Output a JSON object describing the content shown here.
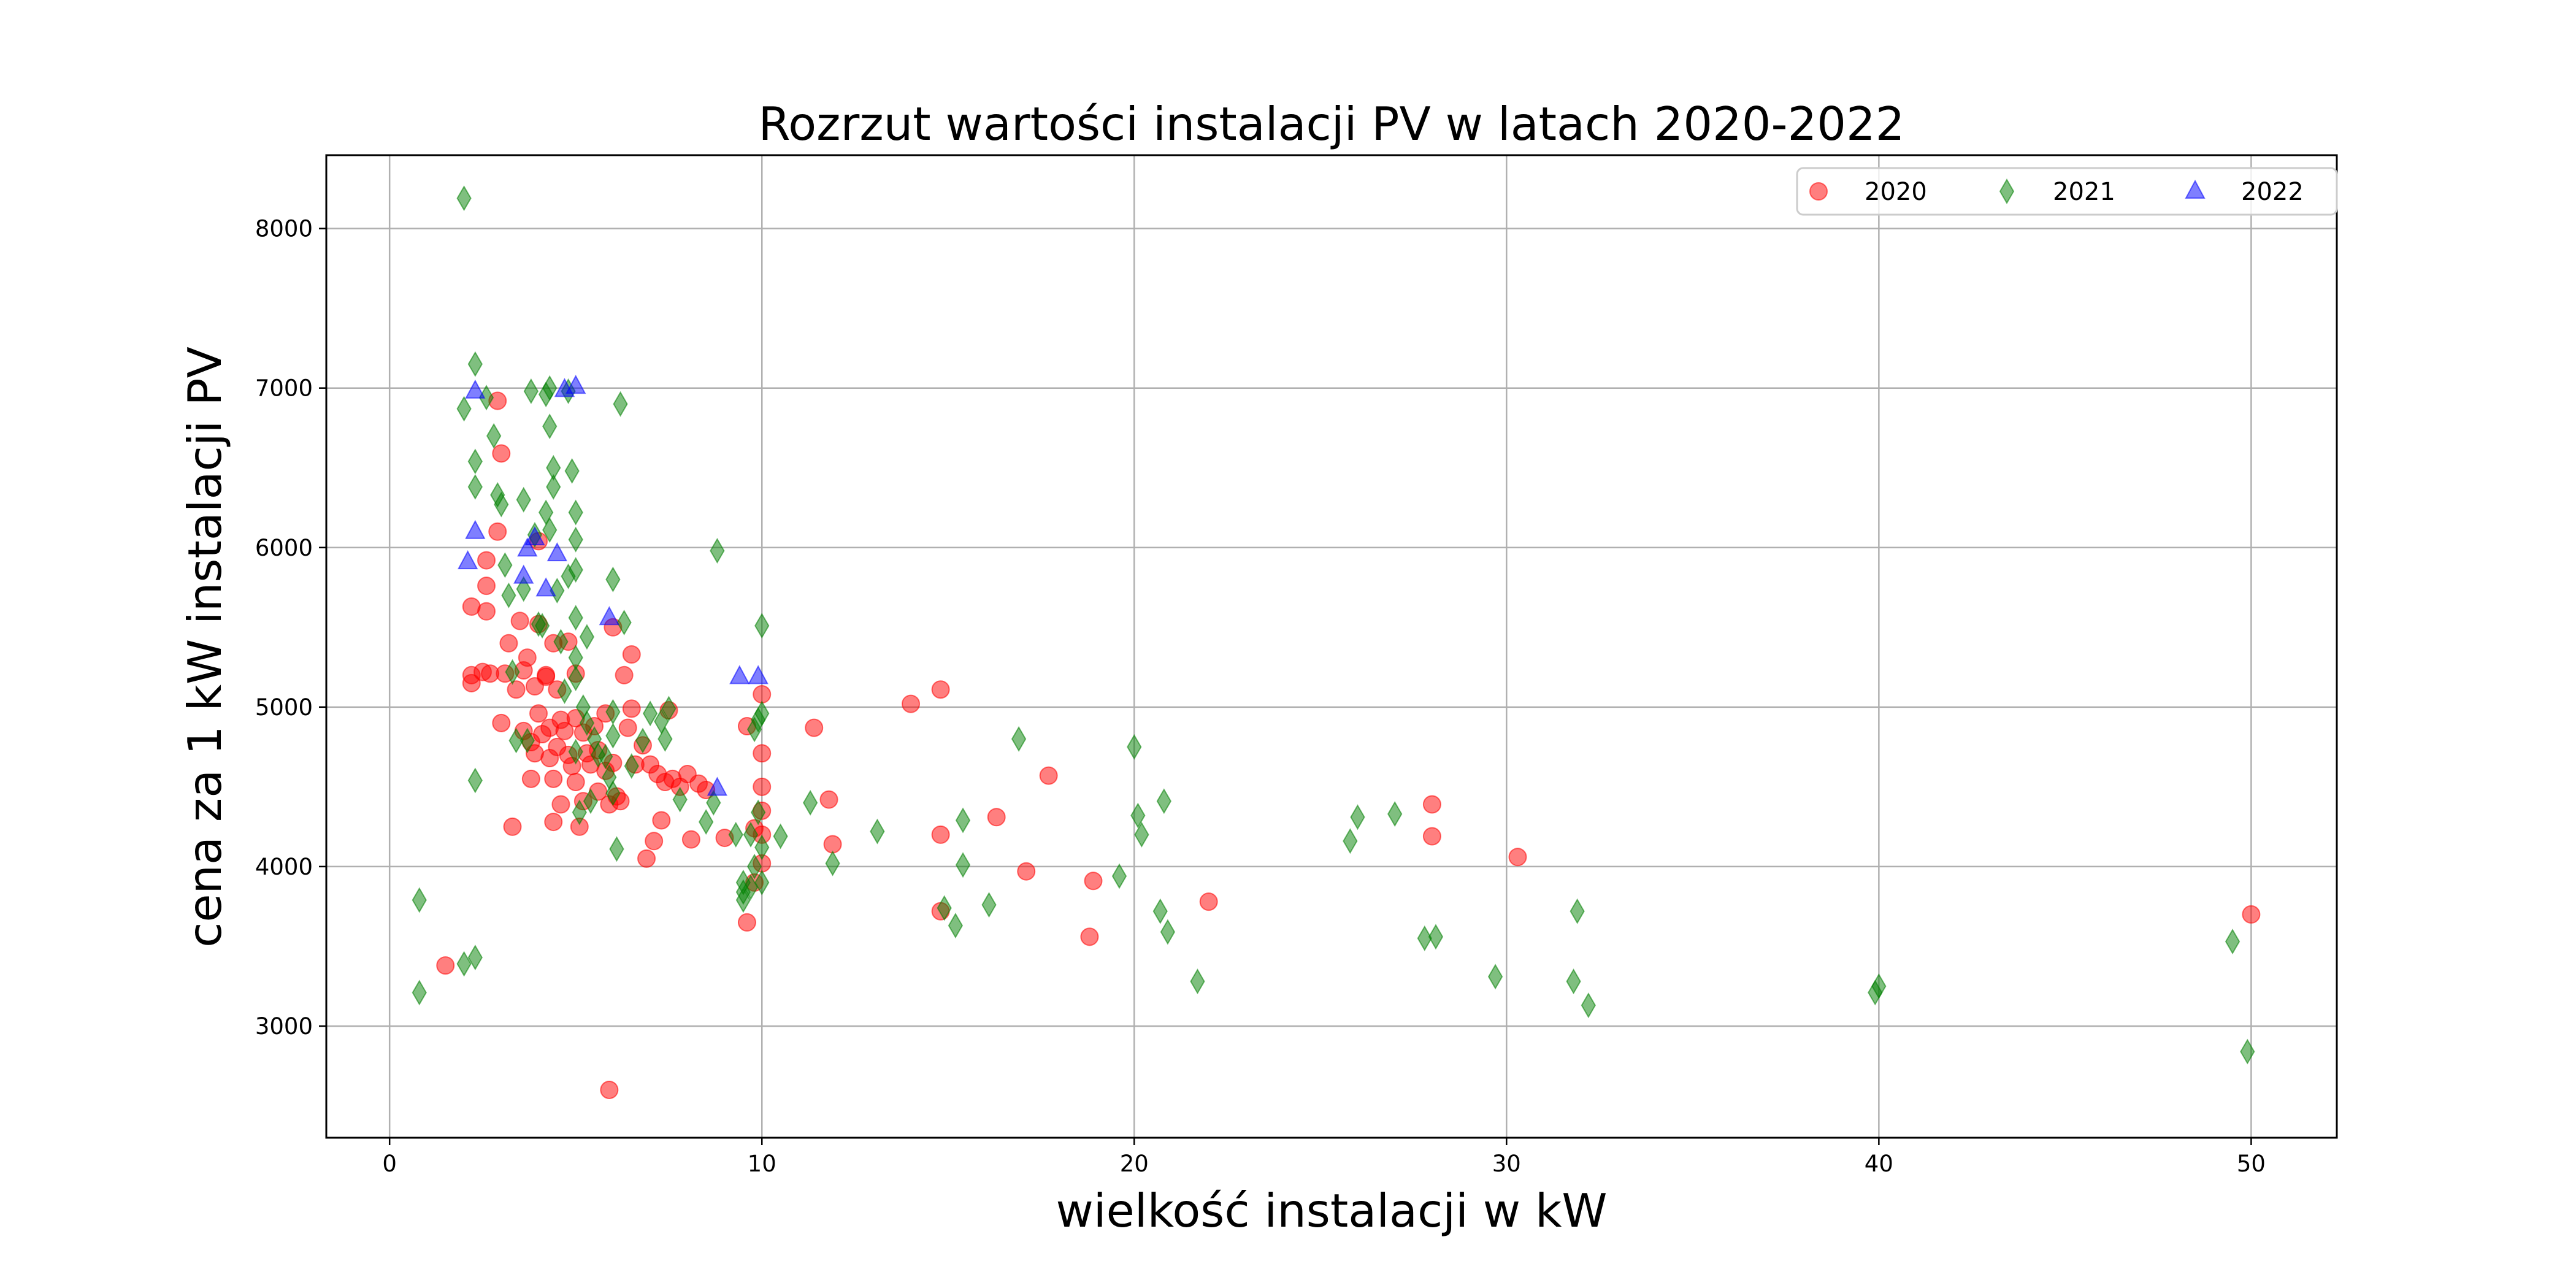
{
  "chart_data": {
    "type": "scatter",
    "title": "Rozrzut wartości instalacji PV w latach 2020-2022",
    "xlabel": "wielkość instalacji w kW",
    "ylabel": "cena za 1 kW instalacji PV",
    "xlim": [
      -1.7,
      52.3
    ],
    "ylim": [
      2300,
      8460
    ],
    "xticks": [
      0,
      10,
      20,
      30,
      40,
      50
    ],
    "yticks": [
      3000,
      4000,
      5000,
      6000,
      7000,
      8000
    ],
    "grid": true,
    "legend_position": "top-right",
    "series": [
      {
        "name": "2020",
        "marker": "circle",
        "color": "#ff0000",
        "points": [
          [
            1.5,
            3380
          ],
          [
            2.2,
            5630
          ],
          [
            2.2,
            5150
          ],
          [
            2.2,
            5200
          ],
          [
            2.5,
            5220
          ],
          [
            2.6,
            5920
          ],
          [
            2.6,
            5600
          ],
          [
            2.6,
            5760
          ],
          [
            2.7,
            5210
          ],
          [
            2.9,
            6920
          ],
          [
            2.9,
            6100
          ],
          [
            3.0,
            6590
          ],
          [
            3.0,
            4900
          ],
          [
            3.1,
            5210
          ],
          [
            3.2,
            5400
          ],
          [
            3.3,
            4250
          ],
          [
            3.4,
            5110
          ],
          [
            3.5,
            5540
          ],
          [
            3.6,
            5230
          ],
          [
            3.6,
            4850
          ],
          [
            3.7,
            5310
          ],
          [
            3.8,
            4550
          ],
          [
            3.8,
            4780
          ],
          [
            3.9,
            5130
          ],
          [
            3.9,
            4710
          ],
          [
            4.0,
            6040
          ],
          [
            4.0,
            5520
          ],
          [
            4.0,
            4960
          ],
          [
            4.1,
            4830
          ],
          [
            4.2,
            5200
          ],
          [
            4.2,
            5190
          ],
          [
            4.3,
            4870
          ],
          [
            4.3,
            4680
          ],
          [
            4.4,
            5400
          ],
          [
            4.4,
            4550
          ],
          [
            4.4,
            4280
          ],
          [
            4.5,
            5110
          ],
          [
            4.5,
            4750
          ],
          [
            4.6,
            4920
          ],
          [
            4.6,
            4390
          ],
          [
            4.7,
            4850
          ],
          [
            4.8,
            5410
          ],
          [
            4.8,
            4700
          ],
          [
            4.9,
            4630
          ],
          [
            5.0,
            5210
          ],
          [
            5.0,
            4930
          ],
          [
            5.0,
            4530
          ],
          [
            5.1,
            4250
          ],
          [
            5.2,
            4840
          ],
          [
            5.2,
            4410
          ],
          [
            5.3,
            4710
          ],
          [
            5.4,
            4640
          ],
          [
            5.5,
            4880
          ],
          [
            5.6,
            4730
          ],
          [
            5.6,
            4470
          ],
          [
            5.8,
            4960
          ],
          [
            5.8,
            4600
          ],
          [
            5.9,
            4390
          ],
          [
            5.9,
            2600
          ],
          [
            6.0,
            5500
          ],
          [
            6.0,
            4650
          ],
          [
            6.1,
            4440
          ],
          [
            6.2,
            4410
          ],
          [
            6.3,
            5200
          ],
          [
            6.4,
            4870
          ],
          [
            6.5,
            5330
          ],
          [
            6.5,
            4990
          ],
          [
            6.6,
            4640
          ],
          [
            6.8,
            4760
          ],
          [
            6.9,
            4050
          ],
          [
            7.0,
            4640
          ],
          [
            7.1,
            4160
          ],
          [
            7.2,
            4580
          ],
          [
            7.3,
            4290
          ],
          [
            7.4,
            4530
          ],
          [
            7.5,
            4980
          ],
          [
            7.6,
            4550
          ],
          [
            7.8,
            4500
          ],
          [
            8.0,
            4580
          ],
          [
            8.1,
            4170
          ],
          [
            8.3,
            4520
          ],
          [
            8.5,
            4480
          ],
          [
            9.0,
            4180
          ],
          [
            9.6,
            4880
          ],
          [
            9.6,
            3650
          ],
          [
            9.8,
            4240
          ],
          [
            9.8,
            3900
          ],
          [
            10.0,
            5080
          ],
          [
            10.0,
            4710
          ],
          [
            10.0,
            4500
          ],
          [
            10.0,
            4350
          ],
          [
            10.0,
            4200
          ],
          [
            10.0,
            4020
          ],
          [
            11.4,
            4870
          ],
          [
            11.8,
            4420
          ],
          [
            11.9,
            4140
          ],
          [
            14.0,
            5020
          ],
          [
            14.8,
            5110
          ],
          [
            14.8,
            4200
          ],
          [
            14.8,
            3720
          ],
          [
            16.3,
            4310
          ],
          [
            17.1,
            3970
          ],
          [
            17.7,
            4570
          ],
          [
            18.8,
            3560
          ],
          [
            18.9,
            3910
          ],
          [
            22.0,
            3780
          ],
          [
            28.0,
            4390
          ],
          [
            28.0,
            4190
          ],
          [
            30.3,
            4060
          ],
          [
            50.0,
            3700
          ]
        ]
      },
      {
        "name": "2021",
        "marker": "thin_diamond",
        "color": "#008000",
        "points": [
          [
            0.8,
            3790
          ],
          [
            0.8,
            3210
          ],
          [
            2.0,
            8190
          ],
          [
            2.0,
            6870
          ],
          [
            2.0,
            3390
          ],
          [
            2.3,
            7150
          ],
          [
            2.3,
            6540
          ],
          [
            2.3,
            6380
          ],
          [
            2.3,
            3430
          ],
          [
            2.3,
            4540
          ],
          [
            2.6,
            6940
          ],
          [
            2.8,
            6700
          ],
          [
            2.9,
            6330
          ],
          [
            3.0,
            6270
          ],
          [
            3.1,
            5890
          ],
          [
            3.2,
            5700
          ],
          [
            3.3,
            5220
          ],
          [
            3.4,
            4790
          ],
          [
            3.6,
            6300
          ],
          [
            3.6,
            5740
          ],
          [
            3.7,
            4790
          ],
          [
            3.8,
            6980
          ],
          [
            3.9,
            6080
          ],
          [
            4.0,
            5520
          ],
          [
            4.1,
            5510
          ],
          [
            4.2,
            6960
          ],
          [
            4.2,
            6220
          ],
          [
            4.3,
            7000
          ],
          [
            4.3,
            6760
          ],
          [
            4.3,
            6110
          ],
          [
            4.4,
            6380
          ],
          [
            4.4,
            6500
          ],
          [
            4.5,
            5730
          ],
          [
            4.6,
            5410
          ],
          [
            4.7,
            5100
          ],
          [
            4.8,
            6980
          ],
          [
            4.8,
            5820
          ],
          [
            4.9,
            6480
          ],
          [
            5.0,
            6220
          ],
          [
            5.0,
            6050
          ],
          [
            5.0,
            5860
          ],
          [
            5.0,
            5560
          ],
          [
            5.0,
            5310
          ],
          [
            5.0,
            5180
          ],
          [
            5.0,
            4720
          ],
          [
            5.1,
            4340
          ],
          [
            5.2,
            5000
          ],
          [
            5.3,
            5440
          ],
          [
            5.3,
            4900
          ],
          [
            5.4,
            4410
          ],
          [
            5.5,
            4800
          ],
          [
            5.6,
            4700
          ],
          [
            5.8,
            4690
          ],
          [
            5.9,
            4560
          ],
          [
            6.0,
            5800
          ],
          [
            6.0,
            4970
          ],
          [
            6.0,
            4820
          ],
          [
            6.0,
            4460
          ],
          [
            6.1,
            4110
          ],
          [
            6.2,
            6900
          ],
          [
            6.3,
            5530
          ],
          [
            6.5,
            4630
          ],
          [
            6.8,
            4790
          ],
          [
            7.0,
            4960
          ],
          [
            7.3,
            4910
          ],
          [
            7.4,
            4800
          ],
          [
            7.5,
            4990
          ],
          [
            7.8,
            4420
          ],
          [
            8.5,
            4280
          ],
          [
            8.7,
            4400
          ],
          [
            8.8,
            5980
          ],
          [
            9.3,
            4200
          ],
          [
            9.5,
            3900
          ],
          [
            9.5,
            3840
          ],
          [
            9.5,
            3790
          ],
          [
            9.7,
            4200
          ],
          [
            9.7,
            3870
          ],
          [
            9.8,
            4860
          ],
          [
            9.8,
            4000
          ],
          [
            9.9,
            4920
          ],
          [
            9.9,
            4340
          ],
          [
            10.0,
            5510
          ],
          [
            10.0,
            4960
          ],
          [
            10.0,
            4120
          ],
          [
            10.0,
            3900
          ],
          [
            10.5,
            4190
          ],
          [
            11.3,
            4400
          ],
          [
            11.9,
            4020
          ],
          [
            13.1,
            4220
          ],
          [
            14.9,
            3740
          ],
          [
            15.2,
            3630
          ],
          [
            15.4,
            4010
          ],
          [
            15.4,
            4290
          ],
          [
            16.1,
            3760
          ],
          [
            16.9,
            4800
          ],
          [
            19.6,
            3940
          ],
          [
            20.0,
            4750
          ],
          [
            20.1,
            4320
          ],
          [
            20.2,
            4200
          ],
          [
            20.7,
            3720
          ],
          [
            20.8,
            4410
          ],
          [
            20.9,
            3590
          ],
          [
            21.7,
            3280
          ],
          [
            25.8,
            4160
          ],
          [
            26.0,
            4310
          ],
          [
            27.0,
            4330
          ],
          [
            27.8,
            3550
          ],
          [
            28.1,
            3560
          ],
          [
            29.7,
            3310
          ],
          [
            31.8,
            3280
          ],
          [
            31.9,
            3720
          ],
          [
            32.2,
            3130
          ],
          [
            39.9,
            3210
          ],
          [
            40.0,
            3250
          ],
          [
            49.5,
            3530
          ],
          [
            49.9,
            2840
          ]
        ]
      },
      {
        "name": "2022",
        "marker": "triangle",
        "color": "#0000ff",
        "points": [
          [
            2.1,
            5910
          ],
          [
            2.3,
            6980
          ],
          [
            2.3,
            6100
          ],
          [
            3.6,
            5820
          ],
          [
            3.7,
            5990
          ],
          [
            3.9,
            6060
          ],
          [
            4.2,
            5740
          ],
          [
            4.5,
            5960
          ],
          [
            4.7,
            6990
          ],
          [
            5.0,
            7010
          ],
          [
            5.9,
            5560
          ],
          [
            8.8,
            4490
          ],
          [
            9.4,
            5190
          ],
          [
            9.9,
            5190
          ]
        ]
      }
    ]
  }
}
